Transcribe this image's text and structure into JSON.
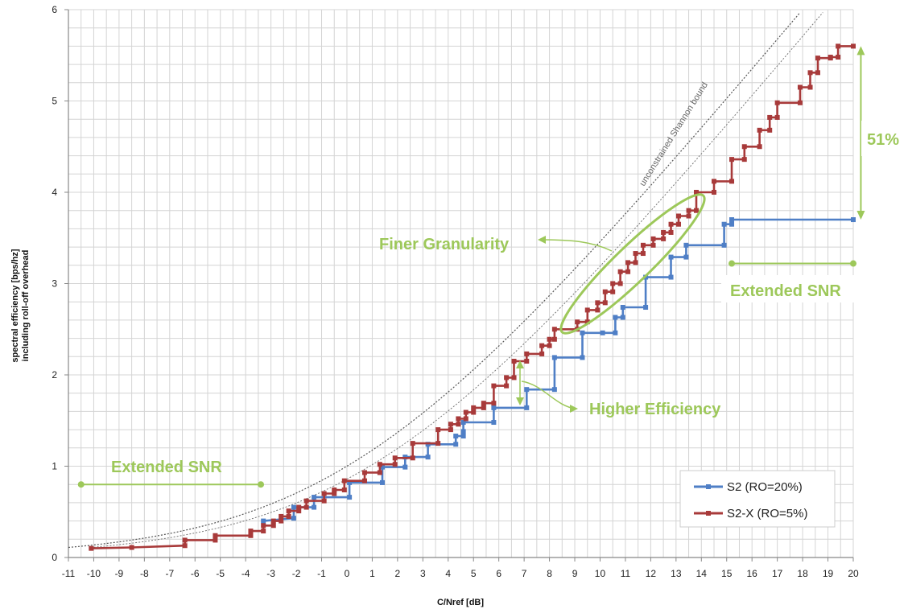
{
  "chart_data": {
    "type": "line",
    "xlabel": "C/Nref [dB]",
    "ylabel_line1": "spectral efficiency  [bps/hz]",
    "ylabel_line2": "including roll-off overhead",
    "xlim": [
      -11,
      20
    ],
    "ylim": [
      0,
      6
    ],
    "x_ticks": [
      "-11",
      "-10",
      "-9",
      "-8",
      "-7",
      "-6",
      "-5",
      "-4",
      "-3",
      "-2",
      "-1",
      "0",
      "1",
      "2",
      "3",
      "4",
      "5",
      "6",
      "7",
      "8",
      "9",
      "10",
      "11",
      "12",
      "13",
      "14",
      "15",
      "16",
      "17",
      "18",
      "19",
      "20"
    ],
    "y_ticks": [
      "0",
      "1",
      "2",
      "3",
      "4",
      "5",
      "6"
    ],
    "grid": true,
    "legend_position": "bottom-right",
    "series": [
      {
        "name": "S2 (RO=20%)",
        "color": "#4f7fc6",
        "points": [
          [
            -3.3,
            0.4
          ],
          [
            -2.1,
            0.43
          ],
          [
            -2.1,
            0.55
          ],
          [
            -1.3,
            0.55
          ],
          [
            -1.3,
            0.66
          ],
          [
            0.1,
            0.66
          ],
          [
            0.1,
            0.82
          ],
          [
            1.4,
            0.82
          ],
          [
            1.4,
            0.99
          ],
          [
            2.3,
            0.99
          ],
          [
            2.3,
            1.1
          ],
          [
            3.2,
            1.1
          ],
          [
            3.2,
            1.24
          ],
          [
            4.3,
            1.24
          ],
          [
            4.3,
            1.33
          ],
          [
            4.6,
            1.33
          ],
          [
            4.6,
            1.38
          ],
          [
            4.6,
            1.48
          ],
          [
            5.8,
            1.48
          ],
          [
            5.8,
            1.64
          ],
          [
            7.1,
            1.64
          ],
          [
            7.1,
            1.84
          ],
          [
            8.2,
            1.84
          ],
          [
            8.2,
            2.19
          ],
          [
            9.3,
            2.19
          ],
          [
            9.3,
            2.46
          ],
          [
            10.1,
            2.46
          ],
          [
            10.6,
            2.46
          ],
          [
            10.6,
            2.63
          ],
          [
            10.9,
            2.63
          ],
          [
            10.9,
            2.74
          ],
          [
            11.8,
            2.74
          ],
          [
            11.8,
            3.07
          ],
          [
            12.8,
            3.07
          ],
          [
            12.8,
            3.29
          ],
          [
            13.4,
            3.29
          ],
          [
            13.4,
            3.42
          ],
          [
            14.9,
            3.42
          ],
          [
            14.9,
            3.65
          ],
          [
            15.2,
            3.65
          ],
          [
            15.2,
            3.7
          ],
          [
            20,
            3.7
          ]
        ]
      },
      {
        "name": "S2-X (RO=5%)",
        "color": "#a83a3a",
        "points": [
          [
            -10.1,
            0.1
          ],
          [
            -8.5,
            0.11
          ],
          [
            -6.4,
            0.13
          ],
          [
            -6.4,
            0.19
          ],
          [
            -5.2,
            0.19
          ],
          [
            -5.2,
            0.24
          ],
          [
            -3.8,
            0.24
          ],
          [
            -3.8,
            0.29
          ],
          [
            -3.3,
            0.29
          ],
          [
            -3.3,
            0.35
          ],
          [
            -2.9,
            0.35
          ],
          [
            -2.9,
            0.4
          ],
          [
            -2.6,
            0.4
          ],
          [
            -2.6,
            0.45
          ],
          [
            -2.3,
            0.45
          ],
          [
            -2.3,
            0.51
          ],
          [
            -1.9,
            0.51
          ],
          [
            -1.9,
            0.55
          ],
          [
            -1.6,
            0.55
          ],
          [
            -1.6,
            0.62
          ],
          [
            -0.9,
            0.62
          ],
          [
            -0.9,
            0.7
          ],
          [
            -0.5,
            0.7
          ],
          [
            -0.5,
            0.74
          ],
          [
            -0.1,
            0.74
          ],
          [
            -0.1,
            0.84
          ],
          [
            0.7,
            0.84
          ],
          [
            0.7,
            0.93
          ],
          [
            1.3,
            0.93
          ],
          [
            1.3,
            1.02
          ],
          [
            1.9,
            1.02
          ],
          [
            1.9,
            1.09
          ],
          [
            2.6,
            1.09
          ],
          [
            2.6,
            1.25
          ],
          [
            3.6,
            1.25
          ],
          [
            3.6,
            1.4
          ],
          [
            4.1,
            1.4
          ],
          [
            4.1,
            1.46
          ],
          [
            4.4,
            1.46
          ],
          [
            4.4,
            1.52
          ],
          [
            4.7,
            1.52
          ],
          [
            4.7,
            1.59
          ],
          [
            5.0,
            1.59
          ],
          [
            5.0,
            1.64
          ],
          [
            5.4,
            1.64
          ],
          [
            5.4,
            1.69
          ],
          [
            5.8,
            1.69
          ],
          [
            5.8,
            1.88
          ],
          [
            6.3,
            1.88
          ],
          [
            6.3,
            1.97
          ],
          [
            6.6,
            1.97
          ],
          [
            6.6,
            2.15
          ],
          [
            7.1,
            2.15
          ],
          [
            7.1,
            2.23
          ],
          [
            7.7,
            2.23
          ],
          [
            7.7,
            2.32
          ],
          [
            8.0,
            2.32
          ],
          [
            8.0,
            2.39
          ],
          [
            8.2,
            2.39
          ],
          [
            8.2,
            2.5
          ],
          [
            9.1,
            2.5
          ],
          [
            9.1,
            2.58
          ],
          [
            9.5,
            2.58
          ],
          [
            9.5,
            2.71
          ],
          [
            9.9,
            2.71
          ],
          [
            9.9,
            2.79
          ],
          [
            10.2,
            2.79
          ],
          [
            10.2,
            2.91
          ],
          [
            10.5,
            2.91
          ],
          [
            10.5,
            3.0
          ],
          [
            10.8,
            3.0
          ],
          [
            10.8,
            3.13
          ],
          [
            11.1,
            3.13
          ],
          [
            11.1,
            3.23
          ],
          [
            11.4,
            3.23
          ],
          [
            11.4,
            3.33
          ],
          [
            11.7,
            3.33
          ],
          [
            11.7,
            3.42
          ],
          [
            12.1,
            3.42
          ],
          [
            12.1,
            3.49
          ],
          [
            12.5,
            3.49
          ],
          [
            12.5,
            3.56
          ],
          [
            12.8,
            3.56
          ],
          [
            12.8,
            3.65
          ],
          [
            13.1,
            3.65
          ],
          [
            13.1,
            3.74
          ],
          [
            13.5,
            3.74
          ],
          [
            13.5,
            3.8
          ],
          [
            13.8,
            3.8
          ],
          [
            13.8,
            4.0
          ],
          [
            14.5,
            4.0
          ],
          [
            14.5,
            4.12
          ],
          [
            15.2,
            4.12
          ],
          [
            15.2,
            4.36
          ],
          [
            15.7,
            4.36
          ],
          [
            15.7,
            4.5
          ],
          [
            16.3,
            4.5
          ],
          [
            16.3,
            4.68
          ],
          [
            16.7,
            4.68
          ],
          [
            16.7,
            4.82
          ],
          [
            17.0,
            4.82
          ],
          [
            17.0,
            4.98
          ],
          [
            17.9,
            4.98
          ],
          [
            17.9,
            5.15
          ],
          [
            18.3,
            5.15
          ],
          [
            18.3,
            5.31
          ],
          [
            18.6,
            5.31
          ],
          [
            18.6,
            5.47
          ],
          [
            19.1,
            5.47
          ],
          [
            19.1,
            5.48
          ],
          [
            19.4,
            5.48
          ],
          [
            19.4,
            5.6
          ],
          [
            20,
            5.6
          ]
        ]
      }
    ],
    "reference_curve": {
      "label": "unconstrained Shannon bound",
      "x_range": [
        -11,
        18.1
      ]
    },
    "annotations": {
      "extended_snr_left": {
        "label": "Extended SNR",
        "range": [
          -10.5,
          -3.4
        ],
        "y": 0.8
      },
      "extended_snr_right": {
        "label": "Extended SNR",
        "range": [
          15.2,
          20
        ],
        "y": 3.22
      },
      "finer_granularity": {
        "label": "Finer Granularity"
      },
      "higher_efficiency": {
        "label": "Higher Efficiency"
      },
      "gain": {
        "label": "51%",
        "range": [
          3.7,
          5.6
        ],
        "x": 20.3
      }
    },
    "annotation_color": "#9dc85a"
  }
}
